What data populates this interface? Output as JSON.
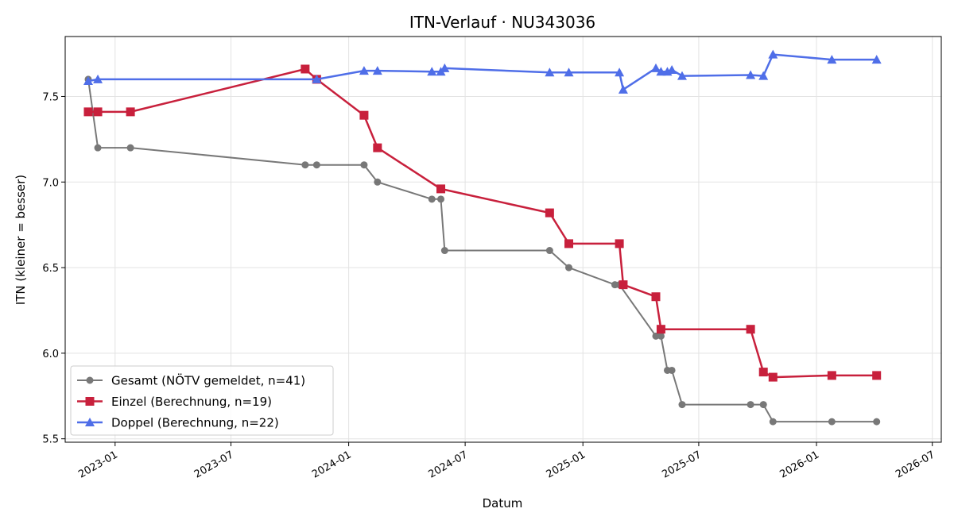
{
  "chart_data": {
    "type": "line",
    "title": "ITN-Verlauf · NU343036",
    "xlabel": "Datum",
    "ylabel": "ITN  (kleiner = besser)",
    "xlim": [
      "2022-10-15",
      "2026-07-15"
    ],
    "ylim": [
      5.48,
      7.85
    ],
    "grid": true,
    "legend_position": "lower-left",
    "x_ticks": [
      "2023-01-01",
      "2023-07-01",
      "2024-01-01",
      "2024-07-01",
      "2025-01-01",
      "2025-07-01",
      "2026-01-01",
      "2026-07-01"
    ],
    "x_tick_labels": [
      "2023-01",
      "2023-07",
      "2024-01",
      "2024-07",
      "2025-01",
      "2025-07",
      "2026-01",
      "2026-07"
    ],
    "y_ticks": [
      5.5,
      6.0,
      6.5,
      7.0,
      7.5
    ],
    "y_tick_labels": [
      "5.5",
      "6.0",
      "6.5",
      "7.0",
      "7.5"
    ],
    "series": [
      {
        "name": "Gesamt (NÖTV gemeldet, n=41)",
        "color": "#404040",
        "marker": "circle",
        "points": [
          [
            "2022-11-20",
            7.6
          ],
          [
            "2022-12-05",
            7.2
          ],
          [
            "2023-01-25",
            7.2
          ],
          [
            "2023-10-25",
            7.1
          ],
          [
            "2023-11-12",
            7.1
          ],
          [
            "2024-01-25",
            7.1
          ],
          [
            "2024-02-15",
            7.0
          ],
          [
            "2024-05-10",
            6.9
          ],
          [
            "2024-05-24",
            6.9
          ],
          [
            "2024-05-30",
            6.6
          ],
          [
            "2024-11-10",
            6.6
          ],
          [
            "2024-12-10",
            6.5
          ],
          [
            "2025-02-20",
            6.4
          ],
          [
            "2025-02-27",
            6.4
          ],
          [
            "2025-04-25",
            6.1
          ],
          [
            "2025-05-03",
            6.1
          ],
          [
            "2025-05-13",
            5.9
          ],
          [
            "2025-05-20",
            5.9
          ],
          [
            "2025-06-05",
            5.7
          ],
          [
            "2025-09-20",
            5.7
          ],
          [
            "2025-10-10",
            5.7
          ],
          [
            "2025-10-25",
            5.6
          ],
          [
            "2026-01-25",
            5.6
          ],
          [
            "2026-04-05",
            5.6
          ]
        ]
      },
      {
        "name": "Einzel (Berechnung, n=19)",
        "color": "#c8203c",
        "marker": "square",
        "points": [
          [
            "2022-11-20",
            7.41
          ],
          [
            "2022-12-05",
            7.41
          ],
          [
            "2023-01-25",
            7.41
          ],
          [
            "2023-10-25",
            7.66
          ],
          [
            "2023-11-12",
            7.6
          ],
          [
            "2024-01-25",
            7.39
          ],
          [
            "2024-02-15",
            7.2
          ],
          [
            "2024-05-24",
            6.96
          ],
          [
            "2024-11-10",
            6.82
          ],
          [
            "2024-12-10",
            6.64
          ],
          [
            "2025-02-27",
            6.64
          ],
          [
            "2025-03-05",
            6.4
          ],
          [
            "2025-04-25",
            6.33
          ],
          [
            "2025-05-03",
            6.14
          ],
          [
            "2025-09-20",
            6.14
          ],
          [
            "2025-10-10",
            5.89
          ],
          [
            "2025-10-25",
            5.86
          ],
          [
            "2026-01-25",
            5.87
          ],
          [
            "2026-04-05",
            5.87
          ]
        ]
      },
      {
        "name": "Doppel (Berechnung, n=22)",
        "color": "#4f6ee8",
        "marker": "triangle",
        "points": [
          [
            "2022-11-20",
            7.59
          ],
          [
            "2022-12-05",
            7.6
          ],
          [
            "2023-11-12",
            7.6
          ],
          [
            "2024-01-25",
            7.65
          ],
          [
            "2024-02-15",
            7.65
          ],
          [
            "2024-05-10",
            7.645
          ],
          [
            "2024-05-24",
            7.645
          ],
          [
            "2024-05-30",
            7.665
          ],
          [
            "2024-11-10",
            7.64
          ],
          [
            "2024-12-10",
            7.64
          ],
          [
            "2025-02-27",
            7.64
          ],
          [
            "2025-03-05",
            7.54
          ],
          [
            "2025-04-25",
            7.665
          ],
          [
            "2025-05-03",
            7.645
          ],
          [
            "2025-05-13",
            7.645
          ],
          [
            "2025-05-20",
            7.655
          ],
          [
            "2025-06-05",
            7.62
          ],
          [
            "2025-09-20",
            7.625
          ],
          [
            "2025-10-10",
            7.62
          ],
          [
            "2025-10-25",
            7.745
          ],
          [
            "2026-01-25",
            7.715
          ],
          [
            "2026-04-05",
            7.715
          ]
        ]
      }
    ]
  }
}
